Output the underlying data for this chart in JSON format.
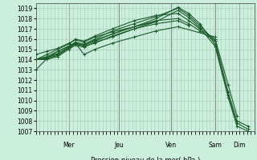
{
  "bg_color": "#cceedd",
  "grid_color": "#aaccbb",
  "line_color": "#1a5c2a",
  "ylabel_text": "Pression niveau de la mer( hPa )",
  "ylim": [
    1007,
    1019.5
  ],
  "yticks": [
    1007,
    1008,
    1009,
    1010,
    1011,
    1012,
    1013,
    1014,
    1015,
    1016,
    1017,
    1018,
    1019
  ],
  "day_labels": [
    "Mer",
    "Jeu",
    "Ven",
    "Sam",
    "Dim"
  ],
  "day_positions": [
    0.15,
    0.38,
    0.62,
    0.82,
    0.93
  ],
  "lines": [
    {
      "x": [
        0.0,
        0.05,
        0.1,
        0.15,
        0.18,
        0.22,
        0.27,
        0.35,
        0.45,
        0.55,
        0.65,
        0.7,
        0.75,
        0.82,
        0.88,
        0.92,
        0.97
      ],
      "y": [
        1014.0,
        1014.2,
        1014.5,
        1015.2,
        1015.6,
        1015.4,
        1015.8,
        1016.5,
        1017.2,
        1018.0,
        1019.1,
        1018.5,
        1017.5,
        1015.5,
        1010.5,
        1007.8,
        1007.2
      ]
    },
    {
      "x": [
        0.0,
        0.05,
        0.1,
        0.15,
        0.18,
        0.22,
        0.27,
        0.35,
        0.45,
        0.55,
        0.65,
        0.7,
        0.75,
        0.82,
        0.88,
        0.92,
        0.97
      ],
      "y": [
        1014.0,
        1014.3,
        1014.8,
        1015.3,
        1015.7,
        1015.5,
        1016.0,
        1016.8,
        1017.5,
        1018.2,
        1019.0,
        1018.3,
        1017.3,
        1015.8,
        1010.8,
        1008.0,
        1007.5
      ]
    },
    {
      "x": [
        0.0,
        0.05,
        0.1,
        0.15,
        0.18,
        0.22,
        0.27,
        0.35,
        0.45,
        0.55,
        0.65,
        0.7,
        0.75,
        0.82,
        0.88,
        0.92,
        0.97
      ],
      "y": [
        1014.0,
        1014.1,
        1014.4,
        1015.1,
        1015.5,
        1015.3,
        1015.6,
        1016.3,
        1017.0,
        1017.7,
        1018.8,
        1018.1,
        1017.1,
        1015.3,
        1010.3,
        1007.5,
        1007.0
      ]
    },
    {
      "x": [
        0.0,
        0.05,
        0.1,
        0.15,
        0.18,
        0.22,
        0.27,
        0.35,
        0.45,
        0.55,
        0.65,
        0.7,
        0.75,
        0.82,
        0.88,
        0.92
      ],
      "y": [
        1014.0,
        1014.5,
        1015.0,
        1015.5,
        1016.0,
        1015.8,
        1016.3,
        1017.0,
        1017.8,
        1018.3,
        1018.5,
        1017.8,
        1017.0,
        1016.0,
        1011.5,
        1008.5
      ]
    },
    {
      "x": [
        0.0,
        0.05,
        0.1,
        0.15,
        0.18,
        0.22,
        0.27,
        0.35,
        0.45,
        0.55,
        0.65,
        0.7,
        0.75,
        0.82
      ],
      "y": [
        1014.0,
        1014.2,
        1014.6,
        1015.2,
        1015.6,
        1015.4,
        1015.9,
        1016.5,
        1017.2,
        1017.8,
        1018.0,
        1017.5,
        1016.8,
        1015.8
      ]
    },
    {
      "x": [
        0.0,
        0.05,
        0.1,
        0.15,
        0.18,
        0.22,
        0.27,
        0.35,
        0.45,
        0.55,
        0.65,
        0.7
      ],
      "y": [
        1014.0,
        1014.0,
        1014.3,
        1015.0,
        1015.4,
        1015.2,
        1015.7,
        1016.2,
        1017.0,
        1017.5,
        1017.8,
        1017.3
      ]
    },
    {
      "x": [
        0.0,
        0.05,
        0.1,
        0.15,
        0.18,
        0.22,
        0.27,
        0.35,
        0.45,
        0.55,
        0.65,
        0.82
      ],
      "y": [
        1013.0,
        1014.1,
        1014.8,
        1015.3,
        1015.6,
        1014.5,
        1015.0,
        1015.6,
        1016.2,
        1016.8,
        1017.2,
        1016.2
      ]
    },
    {
      "x": [
        0.0,
        0.05,
        0.1,
        0.15,
        0.18,
        0.22,
        0.27,
        0.35,
        0.45,
        0.55
      ],
      "y": [
        1014.5,
        1014.8,
        1015.1,
        1015.6,
        1015.9,
        1015.7,
        1016.2,
        1016.7,
        1017.2,
        1017.7
      ]
    }
  ]
}
